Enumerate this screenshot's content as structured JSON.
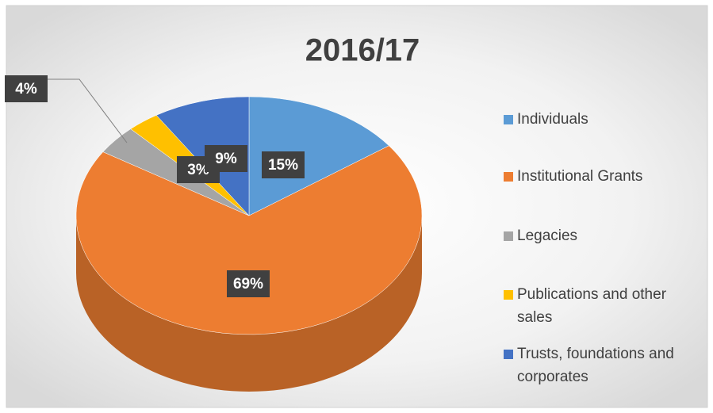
{
  "chart_data": {
    "type": "pie",
    "title": "2016/17",
    "categories": [
      "Individuals",
      "Institutional Grants",
      "Legacies",
      "Publications and other sales",
      "Trusts, foundations and corporates"
    ],
    "values": [
      15,
      69,
      4,
      3,
      9
    ],
    "value_labels": [
      "15%",
      "69%",
      "4%",
      "3%",
      "9%"
    ],
    "colors": [
      "#5b9bd5",
      "#ed7d31",
      "#a5a5a5",
      "#ffc000",
      "#4472c4"
    ],
    "legend": "right"
  }
}
